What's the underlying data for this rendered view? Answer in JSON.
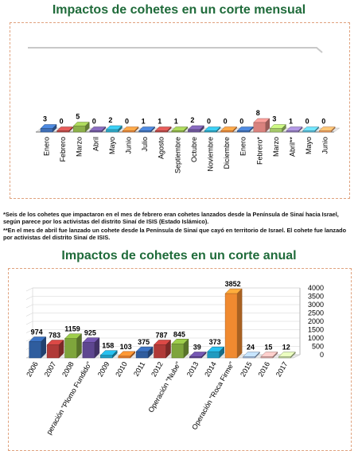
{
  "charts": {
    "monthly": {
      "title": "Impactos de cohetes en un corte mensual"
    },
    "annual": {
      "title": "Impactos de cohetes en un corte anual"
    }
  },
  "footnotes": {
    "note1": "*Seis de los cohetes que impactaron en el mes de febrero eran cohetes lanzados desde la Península de Sinaí hacia Israel, según parece por los activistas del distrito Sinaí de ISIS (Estado Islámico).",
    "note2": "**En el mes de abril fue lanzado un cohete desde la Península de Sinaí que cayó en territorio de Israel. El cohete fue lanzado por activistas del distrito Sinaí de ISIS."
  },
  "chart_data": [
    {
      "type": "bar",
      "title": "Impactos de cohetes en un corte mensual",
      "categories": [
        "Enero",
        "Febrero",
        "Marzo",
        "Abril",
        "Mayo",
        "Junio",
        "Julio",
        "Agosto",
        "Septiembre",
        "Octubre",
        "Noviembre",
        "Diciembre",
        "Enero",
        "Febrero*",
        "Marzo",
        "Abril**",
        "Mayo",
        "Junio"
      ],
      "values": [
        3,
        0,
        5,
        0,
        2,
        0,
        1,
        1,
        1,
        2,
        0,
        0,
        0,
        8,
        3,
        1,
        0,
        0
      ],
      "colors": [
        "#3f6fb5",
        "#b94a48",
        "#8cb04a",
        "#6e569a",
        "#2fa6c4",
        "#e8883a",
        "#3f6fb5",
        "#b94a48",
        "#8cb04a",
        "#6e569a",
        "#2fa6c4",
        "#e8883a",
        "#3f6fb5",
        "#d9827e",
        "#a5c86a",
        "#8f7ab8",
        "#5ab8d4",
        "#f0a060"
      ],
      "style": "3d"
    },
    {
      "type": "bar",
      "title": "Impactos de cohetes en un corte anual",
      "categories": [
        "2006",
        "2007",
        "2008",
        "peración \"Plomo Fundido\"",
        "2009",
        "2010",
        "2011",
        "2012",
        "Operación \"Nube\"",
        "2013",
        "2014",
        "Operación \"Roca Firme\"",
        "2015",
        "2016",
        "2017"
      ],
      "values": [
        974,
        783,
        1159,
        925,
        158,
        103,
        375,
        787,
        845,
        39,
        373,
        3852,
        24,
        15,
        12
      ],
      "colors": [
        "#2f5d9e",
        "#b03a38",
        "#7ea53c",
        "#5e4690",
        "#1f9ac0",
        "#e07a2a",
        "#2f5d9e",
        "#b03a38",
        "#7ea53c",
        "#5e4690",
        "#1f9ac0",
        "#f08a30",
        "#9fb7d8",
        "#d8a6a4",
        "#bcd19a"
      ],
      "yticks": [
        0,
        500,
        1000,
        1500,
        2000,
        2500,
        3000,
        3500,
        4000
      ],
      "ylim": [
        0,
        4000
      ],
      "grid": true,
      "style": "3d"
    }
  ]
}
